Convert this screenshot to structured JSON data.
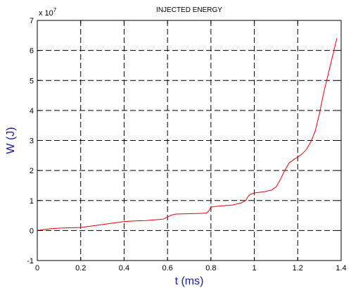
{
  "chart_data": {
    "type": "line",
    "title": "INJECTED ENERGY",
    "xlabel": "t (ms)",
    "ylabel": "W (J)",
    "xlim": [
      0,
      1.4
    ],
    "ylim": [
      -1,
      7
    ],
    "y_multiplier": "x 10",
    "y_multiplier_exponent": "7",
    "grid": true,
    "x_ticks": [
      0,
      0.2,
      0.4,
      0.6,
      0.8,
      1,
      1.2,
      1.4
    ],
    "y_ticks": [
      -1,
      0,
      1,
      2,
      3,
      4,
      5,
      6,
      7
    ],
    "colors": {
      "line": "#e8000b",
      "axis_label": "#1a1aa6",
      "grid": "#000000"
    },
    "series": [
      {
        "x": [
          0,
          0.02,
          0.05,
          0.08,
          0.1,
          0.15,
          0.2,
          0.25,
          0.3,
          0.35,
          0.4,
          0.45,
          0.5,
          0.55,
          0.58,
          0.6,
          0.62,
          0.64,
          0.7,
          0.75,
          0.78,
          0.79,
          0.8,
          0.82,
          0.85,
          0.9,
          0.94,
          0.96,
          0.97,
          0.98,
          1,
          1.05,
          1.08,
          1.1,
          1.12,
          1.14,
          1.16,
          1.18,
          1.2,
          1.22,
          1.24,
          1.26,
          1.28,
          1.3,
          1.32,
          1.34,
          1.36,
          1.38
        ],
        "y": [
          0,
          0.02,
          0.05,
          0.07,
          0.08,
          0.09,
          0.1,
          0.15,
          0.2,
          0.25,
          0.3,
          0.32,
          0.33,
          0.36,
          0.38,
          0.45,
          0.52,
          0.55,
          0.56,
          0.57,
          0.58,
          0.65,
          0.78,
          0.8,
          0.82,
          0.85,
          0.92,
          1.0,
          1.12,
          1.2,
          1.25,
          1.3,
          1.35,
          1.45,
          1.7,
          2.0,
          2.25,
          2.35,
          2.45,
          2.55,
          2.7,
          2.95,
          3.3,
          3.9,
          4.6,
          5.2,
          5.8,
          6.4
        ]
      }
    ]
  }
}
